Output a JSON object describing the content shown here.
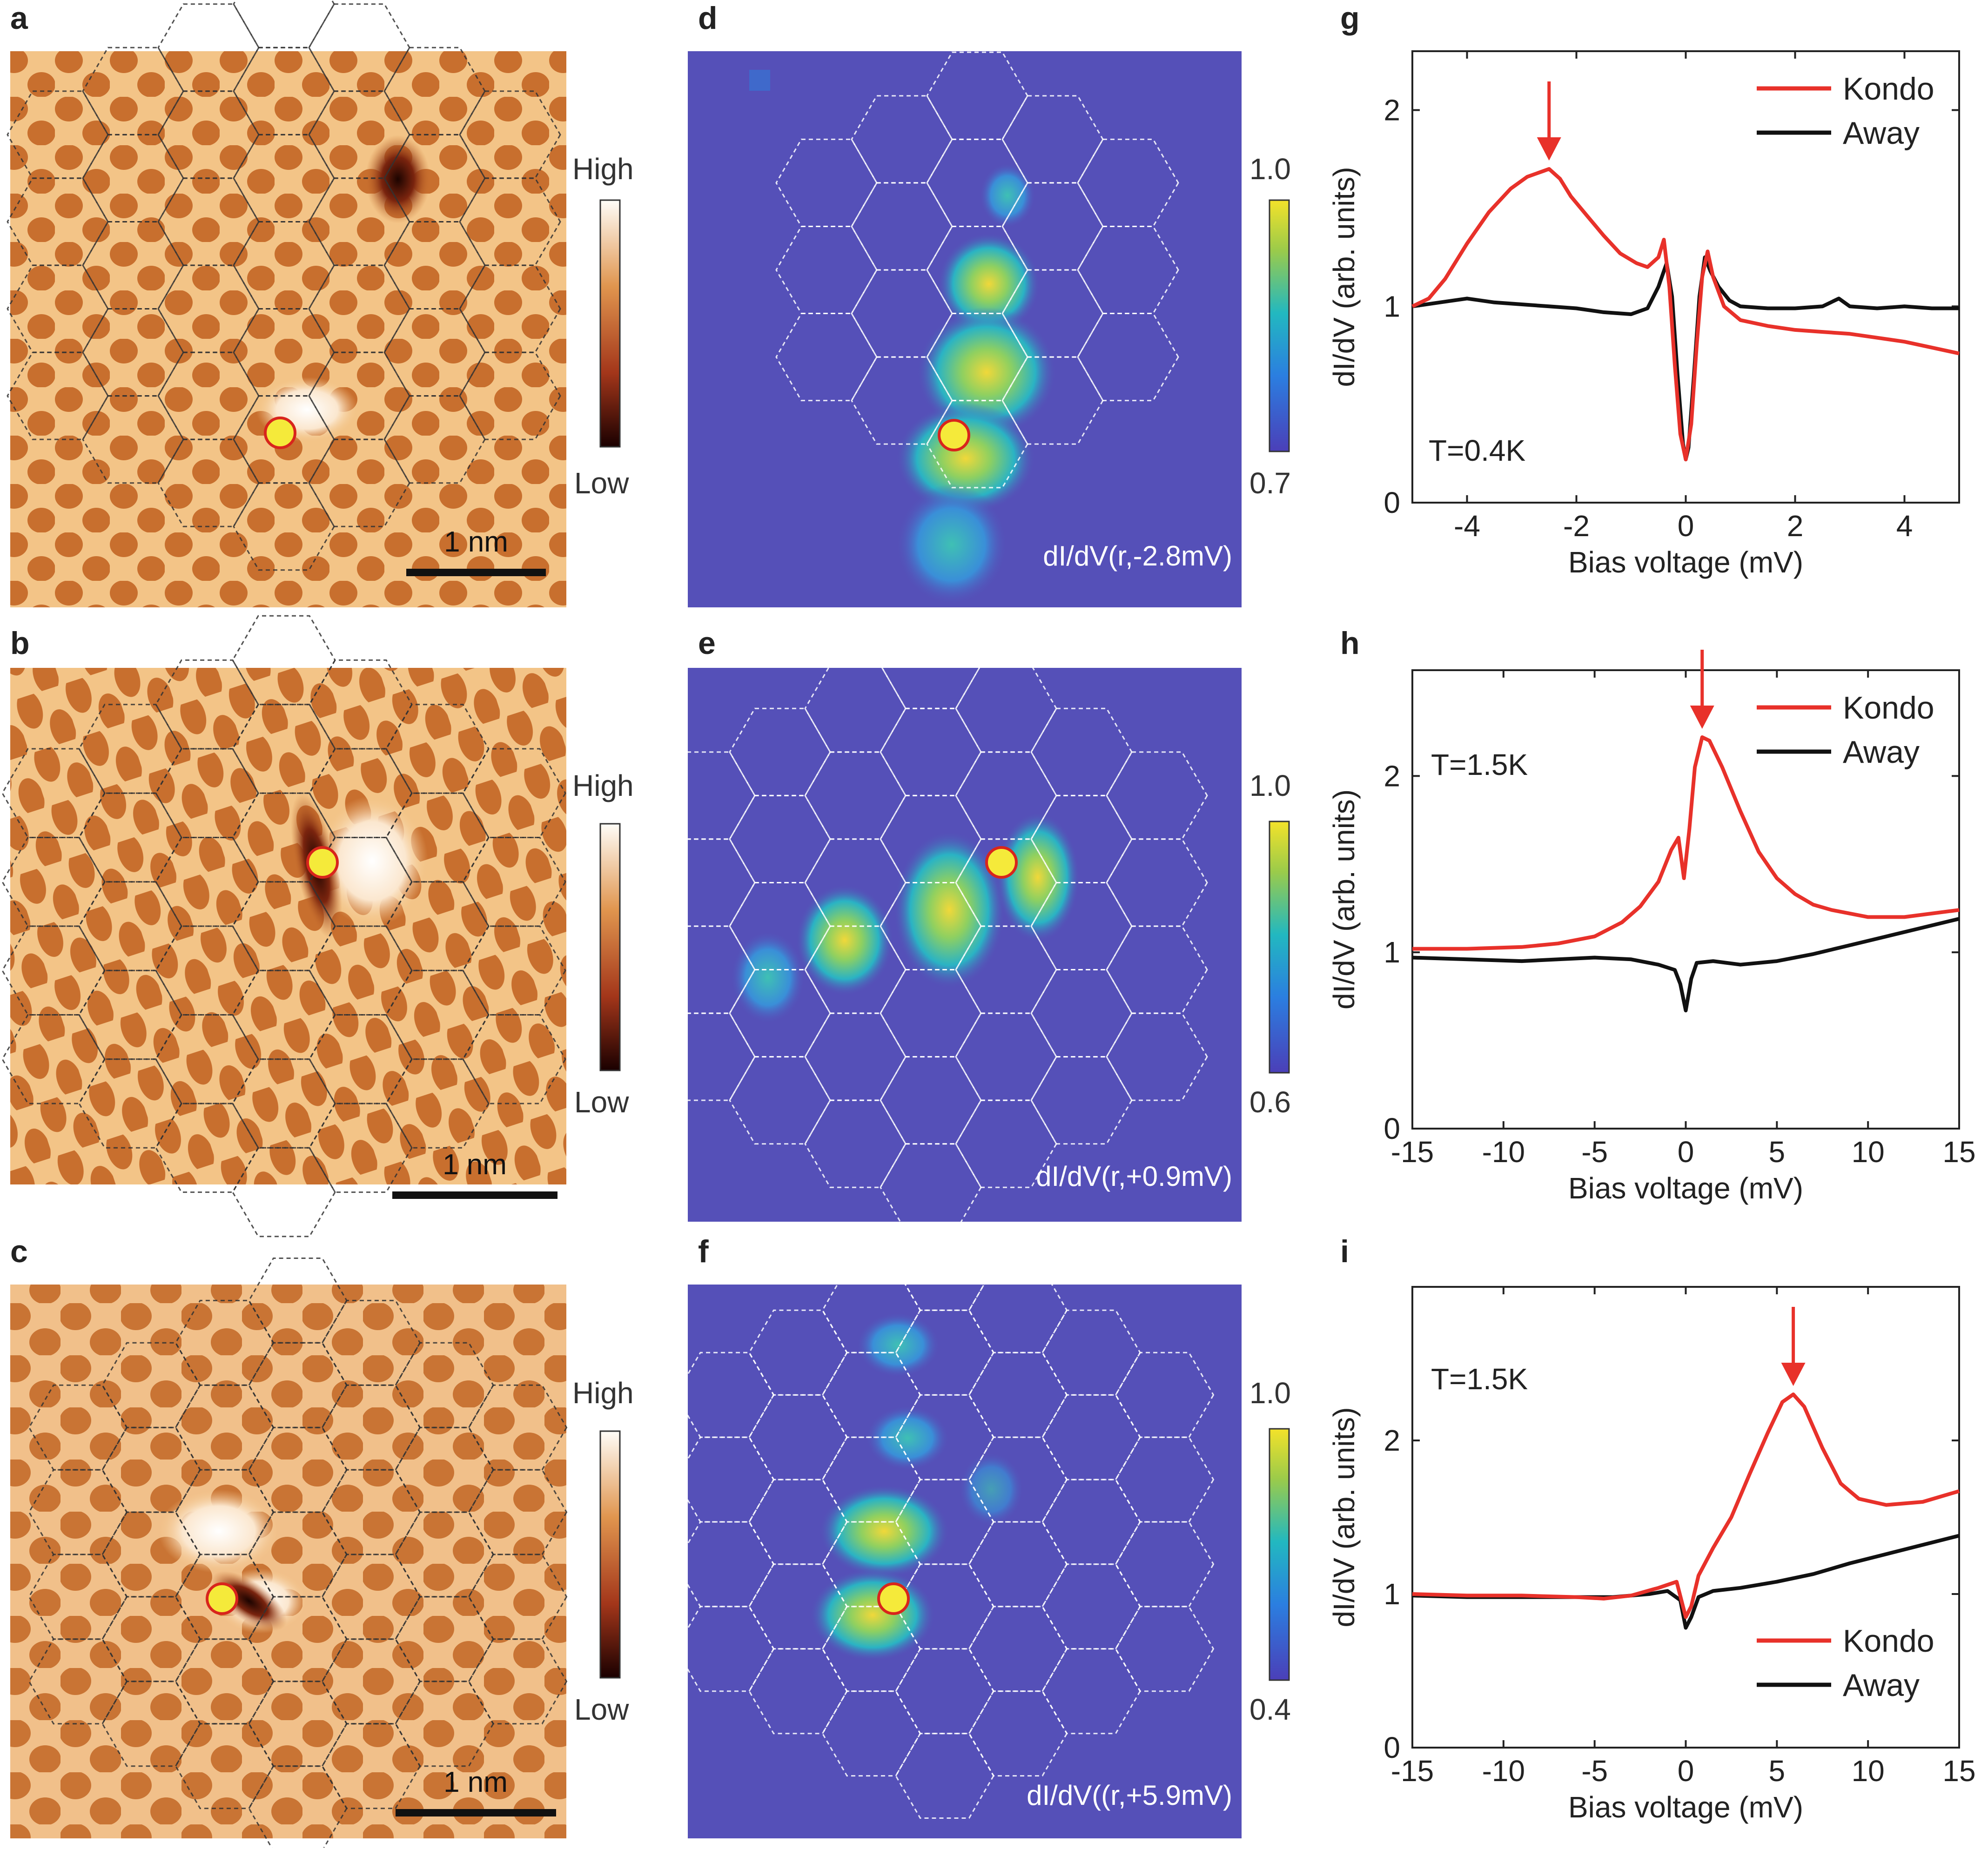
{
  "panels": {
    "a": "a",
    "b": "b",
    "c": "c",
    "d": "d",
    "e": "e",
    "f": "f",
    "g": "g",
    "h": "h",
    "i": "i"
  },
  "topo": {
    "cb_high": "High",
    "cb_low": "Low",
    "scalebar": "1 nm"
  },
  "maps": {
    "d": {
      "label": "dI/dV(r,-2.8mV)",
      "cb_max": "1.0",
      "cb_min": "0.7"
    },
    "e": {
      "label": "dI/dV(r,+0.9mV)",
      "cb_max": "1.0",
      "cb_min": "0.6"
    },
    "f": {
      "label": "dI/dV((r,+5.9mV)",
      "cb_max": "1.0",
      "cb_min": "0.4"
    }
  },
  "colors": {
    "kondo": "#e8312a",
    "away": "#111111",
    "marker_fill": "#f5ea3a",
    "marker_edge": "#d8251c",
    "map_bg": "#5550b8",
    "topo_bg": "#f0b46e"
  },
  "chart_data": [
    {
      "id": "g",
      "type": "line",
      "xlabel": "Bias voltage (mV)",
      "ylabel": "dI/dV (arb. units)",
      "xlim": [
        -5,
        5
      ],
      "ylim": [
        0,
        2.3
      ],
      "xticks": [
        -4,
        -2,
        0,
        2,
        4
      ],
      "yticks": [
        0,
        1,
        2
      ],
      "annotation": "T=0.4K",
      "arrow_x": -2.5,
      "legend_position": "top-right",
      "series": [
        {
          "name": "Kondo",
          "x": [
            -5,
            -4.7,
            -4.4,
            -4,
            -3.6,
            -3.2,
            -2.9,
            -2.6,
            -2.5,
            -2.3,
            -2.1,
            -1.8,
            -1.5,
            -1.2,
            -0.9,
            -0.7,
            -0.5,
            -0.4,
            -0.3,
            -0.2,
            -0.1,
            0,
            0.1,
            0.2,
            0.3,
            0.4,
            0.5,
            0.7,
            1,
            1.5,
            2,
            2.5,
            3,
            3.5,
            4,
            4.5,
            5
          ],
          "y": [
            1.0,
            1.04,
            1.14,
            1.32,
            1.48,
            1.6,
            1.66,
            1.69,
            1.7,
            1.65,
            1.56,
            1.46,
            1.36,
            1.27,
            1.22,
            1.2,
            1.25,
            1.34,
            1.1,
            0.7,
            0.35,
            0.22,
            0.4,
            0.8,
            1.15,
            1.28,
            1.15,
            1.0,
            0.93,
            0.9,
            0.88,
            0.87,
            0.86,
            0.84,
            0.82,
            0.79,
            0.76
          ]
        },
        {
          "name": "Away",
          "x": [
            -5,
            -4.5,
            -4,
            -3.5,
            -3,
            -2.5,
            -2,
            -1.5,
            -1,
            -0.7,
            -0.5,
            -0.35,
            -0.25,
            -0.15,
            -0.05,
            0,
            0.05,
            0.15,
            0.25,
            0.35,
            0.45,
            0.6,
            0.8,
            1,
            1.5,
            2,
            2.5,
            2.8,
            3,
            3.5,
            4,
            4.5,
            5
          ],
          "y": [
            1.0,
            1.02,
            1.04,
            1.02,
            1.01,
            1.0,
            0.99,
            0.97,
            0.96,
            0.99,
            1.1,
            1.22,
            1.05,
            0.65,
            0.3,
            0.22,
            0.28,
            0.65,
            1.05,
            1.25,
            1.18,
            1.1,
            1.03,
            1.0,
            0.99,
            0.99,
            1.0,
            1.04,
            1.0,
            0.99,
            1.0,
            0.99,
            0.99
          ]
        }
      ]
    },
    {
      "id": "h",
      "type": "line",
      "xlabel": "Bias voltage (mV)",
      "ylabel": "dI/dV (arb. units)",
      "xlim": [
        -15,
        15
      ],
      "ylim": [
        0,
        2.6
      ],
      "xticks": [
        -15,
        -10,
        -5,
        0,
        5,
        10,
        15
      ],
      "yticks": [
        0,
        1,
        2
      ],
      "annotation": "T=1.5K",
      "arrow_x": 0.9,
      "legend_position": "top-right",
      "series": [
        {
          "name": "Kondo",
          "x": [
            -15,
            -12,
            -9,
            -7,
            -5,
            -3.5,
            -2.5,
            -1.5,
            -0.8,
            -0.4,
            -0.1,
            0.2,
            0.5,
            0.9,
            1.3,
            2,
            3,
            4,
            5,
            6,
            7,
            8,
            10,
            12,
            15
          ],
          "y": [
            1.02,
            1.02,
            1.03,
            1.05,
            1.09,
            1.17,
            1.26,
            1.4,
            1.58,
            1.65,
            1.42,
            1.7,
            2.05,
            2.22,
            2.2,
            2.05,
            1.8,
            1.57,
            1.42,
            1.33,
            1.27,
            1.24,
            1.2,
            1.2,
            1.24
          ]
        },
        {
          "name": "Away",
          "x": [
            -15,
            -12,
            -9,
            -7,
            -5,
            -3,
            -1.5,
            -0.6,
            -0.3,
            0,
            0.3,
            0.6,
            1.5,
            3,
            5,
            7,
            9,
            11,
            13,
            15
          ],
          "y": [
            0.97,
            0.96,
            0.95,
            0.96,
            0.97,
            0.96,
            0.93,
            0.9,
            0.82,
            0.67,
            0.85,
            0.94,
            0.95,
            0.93,
            0.95,
            0.99,
            1.04,
            1.09,
            1.14,
            1.19
          ]
        }
      ]
    },
    {
      "id": "i",
      "type": "line",
      "xlabel": "Bias voltage (mV)",
      "ylabel": "dI/dV (arb. units)",
      "xlim": [
        -15,
        15
      ],
      "ylim": [
        0,
        3.0
      ],
      "xticks": [
        -15,
        -10,
        -5,
        0,
        5,
        10,
        15
      ],
      "yticks": [
        0,
        1,
        2
      ],
      "annotation": "T=1.5K",
      "arrow_x": 5.9,
      "legend_position": "bottom-right",
      "series": [
        {
          "name": "Kondo",
          "x": [
            -15,
            -12,
            -9,
            -6,
            -4.5,
            -3,
            -1.5,
            -0.5,
            0,
            0.3,
            0.7,
            1.5,
            2.5,
            3.5,
            4.5,
            5.3,
            5.9,
            6.5,
            7.5,
            8.5,
            9.5,
            11,
            13,
            15
          ],
          "y": [
            1.0,
            0.99,
            0.99,
            0.98,
            0.97,
            0.99,
            1.04,
            1.08,
            0.85,
            0.92,
            1.12,
            1.3,
            1.5,
            1.78,
            2.05,
            2.25,
            2.3,
            2.22,
            1.95,
            1.72,
            1.62,
            1.58,
            1.6,
            1.67
          ]
        },
        {
          "name": "Away",
          "x": [
            -15,
            -12,
            -9,
            -6,
            -4,
            -2,
            -1,
            -0.3,
            0,
            0.3,
            0.7,
            1.5,
            3,
            5,
            7,
            9,
            11,
            13,
            15
          ],
          "y": [
            0.99,
            0.98,
            0.98,
            0.98,
            0.98,
            1.0,
            1.02,
            0.96,
            0.78,
            0.85,
            0.98,
            1.02,
            1.04,
            1.08,
            1.13,
            1.2,
            1.26,
            1.32,
            1.38
          ]
        }
      ]
    }
  ]
}
